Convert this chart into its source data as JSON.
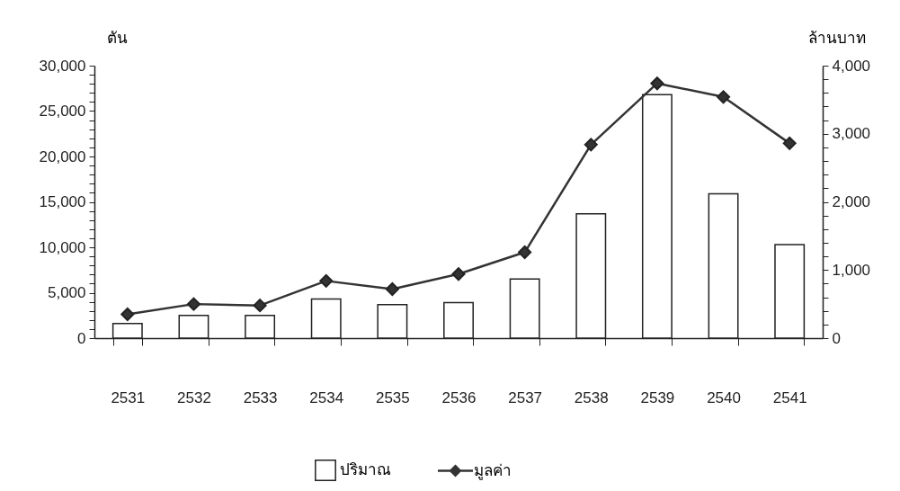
{
  "chart_data": {
    "type": "bar",
    "ylabel": "ตัน",
    "y2label": "ล้านบาท",
    "categories": [
      "2531",
      "2532",
      "2533",
      "2534",
      "2535",
      "2536",
      "2537",
      "2538",
      "2539",
      "2540",
      "2541"
    ],
    "series": [
      {
        "name": "ปริมาณ",
        "color": "#ffffff",
        "values": [
          1600,
          2500,
          2500,
          4300,
          3700,
          3900,
          6500,
          13700,
          26800,
          15900,
          10300
        ]
      },
      {
        "name": "มูลค่า",
        "type": "line",
        "axis": "y2",
        "color": "#333333",
        "values": [
          350,
          500,
          480,
          840,
          720,
          940,
          1260,
          2840,
          3740,
          3540,
          2860
        ]
      }
    ],
    "ylim": [
      0,
      30000
    ],
    "yticks": [
      0,
      {
        "value": 1000,
        "label": null
      },
      {
        "value": 2000,
        "label": null
      },
      {
        "value": 3000,
        "label": null
      },
      {
        "value": 4000,
        "label": null
      },
      {
        "value": 5000,
        "label": "5,000"
      },
      {
        "value": 6000,
        "label": null
      },
      {
        "value": 7000,
        "label": null
      },
      {
        "value": 8000,
        "label": null
      },
      {
        "value": 9000,
        "label": null
      },
      {
        "value": 10000,
        "label": "10,000"
      },
      {
        "value": 11000,
        "label": null
      },
      {
        "value": 12000,
        "label": null
      },
      {
        "value": 13000,
        "label": null
      },
      {
        "value": 14000,
        "label": null
      },
      {
        "value": 15000,
        "label": "15,000"
      },
      {
        "value": 16000,
        "label": null
      },
      {
        "value": 17000,
        "label": null
      },
      {
        "value": 18000,
        "label": null
      },
      {
        "value": 19000,
        "label": null
      },
      {
        "value": 20000,
        "label": "20,000"
      },
      {
        "value": 21000,
        "label": null
      },
      {
        "value": 22000,
        "label": null
      },
      {
        "value": 23000,
        "label": null
      },
      {
        "value": 24000,
        "label": null
      },
      {
        "value": 25000,
        "label": "25,000"
      },
      {
        "value": 26000,
        "label": null
      },
      {
        "value": 27000,
        "label": null
      },
      {
        "value": 28000,
        "label": null
      },
      {
        "value": 29000,
        "label": null
      },
      {
        "value": 30000,
        "label": "30,000"
      }
    ],
    "y2lim": [
      0,
      4000
    ],
    "y2ticks": [
      0,
      {
        "value": 200,
        "label": null
      },
      {
        "value": 400,
        "label": null
      },
      {
        "value": 600,
        "label": null
      },
      {
        "value": 800,
        "label": null
      },
      {
        "value": 1000,
        "label": "1,000"
      },
      {
        "value": 1200,
        "label": null
      },
      {
        "value": 1400,
        "label": null
      },
      {
        "value": 1600,
        "label": null
      },
      {
        "value": 1800,
        "label": null
      },
      {
        "value": 2000,
        "label": "2,000"
      },
      {
        "value": 2200,
        "label": null
      },
      {
        "value": 2400,
        "label": null
      },
      {
        "value": 2600,
        "label": null
      },
      {
        "value": 2800,
        "label": null
      },
      {
        "value": 3000,
        "label": "3,000"
      },
      {
        "value": 3200,
        "label": null
      },
      {
        "value": 3400,
        "label": null
      },
      {
        "value": 3600,
        "label": null
      },
      {
        "value": 3800,
        "label": null
      },
      {
        "value": 4000,
        "label": "4,000"
      }
    ],
    "marker": "diamond",
    "grid": false,
    "legend": "bottom"
  }
}
